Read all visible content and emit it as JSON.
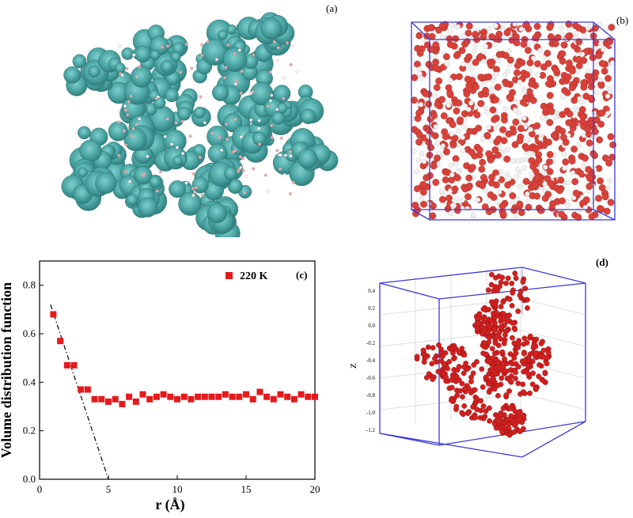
{
  "panels": {
    "a": {
      "label": "(a)"
    },
    "b": {
      "label": "(b)"
    },
    "c": {
      "label": "(c)"
    },
    "d": {
      "label": "(d)"
    }
  },
  "chart_data": {
    "type": "scatter",
    "title": "",
    "xlabel": "r    (Å)",
    "ylabel": "Volume distribution function",
    "xlim": [
      0,
      20
    ],
    "ylim": [
      0,
      0.9
    ],
    "xticks": [
      0,
      5,
      10,
      15,
      20
    ],
    "yticks": [
      0.0,
      0.2,
      0.4,
      0.6,
      0.8
    ],
    "ytick_labels": [
      "0.0",
      "0.2",
      "0.4",
      "0.6",
      "0.8"
    ],
    "grid": false,
    "legend_position": "top-right",
    "series": [
      {
        "name": "220 K",
        "color": "#e41a1c",
        "marker": "square",
        "x": [
          1.0,
          1.5,
          2.0,
          2.5,
          3.0,
          3.5,
          4.0,
          4.5,
          5.0,
          5.5,
          6.0,
          6.5,
          7.0,
          7.5,
          8.0,
          8.5,
          9.0,
          9.5,
          10.0,
          10.5,
          11.0,
          11.5,
          12.0,
          12.5,
          13.0,
          13.5,
          14.0,
          14.5,
          15.0,
          15.5,
          16.0,
          16.5,
          17.0,
          17.5,
          18.0,
          18.5,
          19.0,
          19.5,
          20.0
        ],
        "y": [
          0.68,
          0.57,
          0.47,
          0.47,
          0.37,
          0.37,
          0.33,
          0.33,
          0.32,
          0.33,
          0.31,
          0.34,
          0.32,
          0.35,
          0.33,
          0.34,
          0.35,
          0.34,
          0.33,
          0.34,
          0.33,
          0.34,
          0.34,
          0.34,
          0.34,
          0.35,
          0.34,
          0.34,
          0.35,
          0.33,
          0.36,
          0.34,
          0.33,
          0.35,
          0.34,
          0.33,
          0.35,
          0.34,
          0.34
        ]
      }
    ],
    "fit_line": {
      "style": "dash-dot",
      "x": [
        0.8,
        5.0
      ],
      "y": [
        0.72,
        0.0
      ]
    }
  },
  "panel_d": {
    "zlabel": "Z",
    "zticks": [
      "0.4",
      "0.2",
      "0.0",
      "-0.2",
      "-0.4",
      "-0.6",
      "-0.8",
      "-1.0",
      "-1.2"
    ]
  }
}
